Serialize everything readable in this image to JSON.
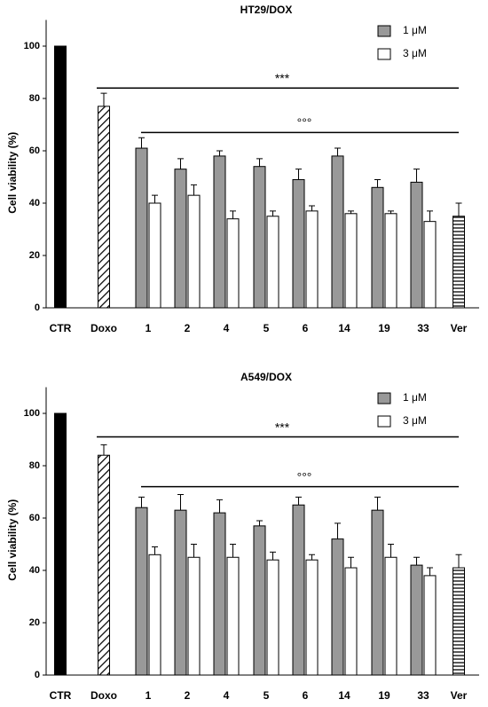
{
  "chart_data": [
    {
      "type": "bar",
      "title": "HT29/DOX",
      "ylabel": "Cell viability (%)",
      "categories": [
        "CTR",
        "Doxo",
        "1",
        "2",
        "4",
        "5",
        "6",
        "14",
        "19",
        "33",
        "Ver"
      ],
      "ylim": [
        0,
        110
      ],
      "yticks": [
        0,
        20,
        40,
        60,
        80,
        100
      ],
      "single_color": "#000000",
      "single_values": [
        100,
        77,
        null,
        null,
        null,
        null,
        null,
        null,
        null,
        null,
        35
      ],
      "single_errors": [
        null,
        5,
        null,
        null,
        null,
        null,
        null,
        null,
        null,
        null,
        5
      ],
      "single_fills": [
        "solid",
        "diagonal",
        null,
        null,
        null,
        null,
        null,
        null,
        null,
        null,
        "horizontal"
      ],
      "series": [
        {
          "name": "1 μM",
          "color": "#999999",
          "values": [
            null,
            null,
            61,
            53,
            58,
            54,
            49,
            58,
            46,
            48,
            null
          ],
          "errors": [
            null,
            null,
            4,
            4,
            2,
            3,
            4,
            3,
            3,
            5,
            null
          ]
        },
        {
          "name": "3 μM",
          "color": "#ffffff",
          "values": [
            null,
            null,
            40,
            43,
            34,
            35,
            37,
            36,
            36,
            33,
            null
          ],
          "errors": [
            null,
            null,
            3,
            4,
            3,
            2,
            2,
            1,
            1,
            4,
            null
          ]
        }
      ],
      "annotations": [
        {
          "text": "***",
          "y": 84,
          "from": "Doxo",
          "to": "Ver"
        },
        {
          "text": "°°°",
          "y": 67,
          "from": "1",
          "to": "Ver"
        }
      ]
    },
    {
      "type": "bar",
      "title": "A549/DOX",
      "ylabel": "Cell viability (%)",
      "categories": [
        "CTR",
        "Doxo",
        "1",
        "2",
        "4",
        "5",
        "6",
        "14",
        "19",
        "33",
        "Ver"
      ],
      "ylim": [
        0,
        110
      ],
      "yticks": [
        0,
        20,
        40,
        60,
        80,
        100
      ],
      "single_color": "#000000",
      "single_values": [
        100,
        84,
        null,
        null,
        null,
        null,
        null,
        null,
        null,
        null,
        41
      ],
      "single_errors": [
        null,
        4,
        null,
        null,
        null,
        null,
        null,
        null,
        null,
        null,
        5
      ],
      "single_fills": [
        "solid",
        "diagonal",
        null,
        null,
        null,
        null,
        null,
        null,
        null,
        null,
        "horizontal"
      ],
      "series": [
        {
          "name": "1 μM",
          "color": "#999999",
          "values": [
            null,
            null,
            64,
            63,
            62,
            57,
            65,
            52,
            63,
            42,
            null
          ],
          "errors": [
            null,
            null,
            4,
            6,
            5,
            2,
            3,
            6,
            5,
            3,
            null
          ]
        },
        {
          "name": "3 μM",
          "color": "#ffffff",
          "values": [
            null,
            null,
            46,
            45,
            45,
            44,
            44,
            41,
            45,
            38,
            null
          ],
          "errors": [
            null,
            null,
            3,
            5,
            5,
            3,
            2,
            4,
            5,
            3,
            null
          ]
        }
      ],
      "annotations": [
        {
          "text": "***",
          "y": 91,
          "from": "Doxo",
          "to": "Ver"
        },
        {
          "text": "°°°",
          "y": 72,
          "from": "1",
          "to": "Ver"
        }
      ]
    }
  ]
}
